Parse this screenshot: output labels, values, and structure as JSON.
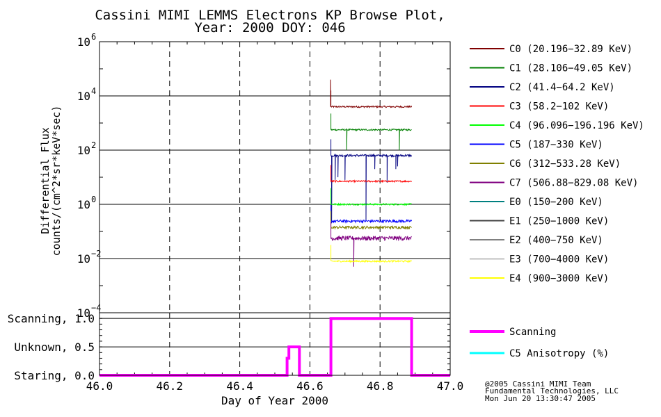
{
  "chart_data": {
    "type": "line",
    "title_line1": "Cassini MIMI LEMMS Electrons KP Browse Plot,",
    "title_line2": "Year: 2000 DOY: 046",
    "xlabel": "Day of Year 2000",
    "xlim": [
      46.0,
      47.0
    ],
    "x_ticks": [
      "46.0",
      "46.2",
      "46.4",
      "46.6",
      "46.8",
      "47.0"
    ],
    "flux_panel": {
      "ylabel_line1": "Differential Flux",
      "ylabel_line2": "counts/(cm^2*sr*keV*sec)",
      "ylim_log10": [
        -4,
        6
      ],
      "y_ticks": [
        {
          "base": "10",
          "exp": "6",
          "log": 6
        },
        {
          "base": "10",
          "exp": "4",
          "log": 4
        },
        {
          "base": "10",
          "exp": "2",
          "log": 2
        },
        {
          "base": "10",
          "exp": "0",
          "log": 0
        },
        {
          "base": "10",
          "exp": "−2",
          "log": -2
        },
        {
          "base": "10",
          "exp": "−4",
          "log": -4
        }
      ],
      "series": [
        {
          "name": "C0 (20.196−32.89 KeV)",
          "color": "#800000",
          "x_range": [
            46.66,
            46.89
          ],
          "level_log10": 3.6,
          "noise": 0.03,
          "spikes": [
            {
              "x": 46.659,
              "log10": 4.6
            }
          ],
          "dips": []
        },
        {
          "name": "C1 (28.106−49.05 KeV)",
          "color": "#007f00",
          "x_range": [
            46.66,
            46.89
          ],
          "level_log10": 2.75,
          "noise": 0.03,
          "spikes": [],
          "dips": [
            {
              "x": 46.705,
              "log10": 2.0
            },
            {
              "x": 46.855,
              "log10": 2.0
            }
          ]
        },
        {
          "name": "C2 (41.4−64.2 KeV)",
          "color": "#000080",
          "x_range": [
            46.66,
            46.89
          ],
          "level_log10": 1.8,
          "noise": 0.04,
          "spikes": [],
          "dips": [
            {
              "x": 46.662,
              "log10": -0.7
            },
            {
              "x": 46.672,
              "log10": 0.9
            },
            {
              "x": 46.68,
              "log10": 1.0
            },
            {
              "x": 46.7,
              "log10": 0.9
            },
            {
              "x": 46.76,
              "log10": -0.6
            },
            {
              "x": 46.785,
              "log10": 1.3
            },
            {
              "x": 46.82,
              "log10": 0.8
            },
            {
              "x": 46.845,
              "log10": 1.3
            },
            {
              "x": 46.85,
              "log10": 1.4
            }
          ]
        },
        {
          "name": "C3 (58.2−102 KeV)",
          "color": "#ff0000",
          "x_range": [
            46.66,
            46.89
          ],
          "level_log10": 0.85,
          "noise": 0.03,
          "spikes": [],
          "dips": []
        },
        {
          "name": "C4 (96.096−196.196 KeV)",
          "color": "#00ff00",
          "x_range": [
            46.66,
            46.89
          ],
          "level_log10": 0.0,
          "noise": 0.03,
          "spikes": [],
          "dips": []
        },
        {
          "name": "C5 (187−330 KeV)",
          "color": "#0000ff",
          "x_range": [
            46.66,
            46.89
          ],
          "level_log10": -0.62,
          "noise": 0.05,
          "spikes": [],
          "dips": []
        },
        {
          "name": "C6 (312−533.28 KeV)",
          "color": "#808000",
          "x_range": [
            46.66,
            46.89
          ],
          "level_log10": -0.85,
          "noise": 0.05,
          "spikes": [],
          "dips": []
        },
        {
          "name": "C7 (506.88−829.08 KeV)",
          "color": "#800080",
          "x_range": [
            46.66,
            46.89
          ],
          "level_log10": -1.25,
          "noise": 0.08,
          "spikes": [],
          "dips": [
            {
              "x": 46.725,
              "log10": -2.3
            }
          ]
        },
        {
          "name": "E0 (150−200 KeV)",
          "color": "#008080",
          "x_range": null,
          "level_log10": null,
          "noise": 0,
          "spikes": [],
          "dips": []
        },
        {
          "name": "E1 (250−1000 KeV)",
          "color": "#404040",
          "x_range": null,
          "level_log10": null,
          "noise": 0,
          "spikes": [],
          "dips": []
        },
        {
          "name": "E2 (400−750 KeV)",
          "color": "#808080",
          "x_range": null,
          "level_log10": null,
          "noise": 0,
          "spikes": [],
          "dips": []
        },
        {
          "name": "E3 (700−4000 KeV)",
          "color": "#c0c0c0",
          "x_range": null,
          "level_log10": null,
          "noise": 0,
          "spikes": [],
          "dips": []
        },
        {
          "name": "E4 (900−3000 KeV)",
          "color": "#ffff00",
          "x_range": [
            46.66,
            46.89
          ],
          "level_log10": -2.1,
          "noise": 0.03,
          "spikes": [],
          "dips": []
        }
      ]
    },
    "mode_panel": {
      "ylim": [
        0,
        1.1
      ],
      "y_ticks": [
        {
          "label": "Scanning, 1.0",
          "value": 1.0
        },
        {
          "label": "Unknown, 0.5",
          "value": 0.5
        },
        {
          "label": "Staring, 0.0",
          "value": 0.0
        }
      ],
      "series": [
        {
          "name": "Scanning",
          "color": "#ff00ff",
          "x": [
            46.0,
            46.535,
            46.535,
            46.54,
            46.54,
            46.57,
            46.57,
            46.66,
            46.66,
            46.89,
            46.89,
            47.0
          ],
          "y": [
            0,
            0,
            0.3,
            0.3,
            0.5,
            0.5,
            0,
            0,
            1.0,
            1.0,
            0,
            0
          ]
        },
        {
          "name": "C5 Anisotropy (%)",
          "color": "#00ffff",
          "x": [],
          "y": []
        }
      ]
    },
    "footer": [
      "@2005 Cassini MIMI Team",
      "Fundamental Technologies, LLC",
      "Mon Jun 20 13:30:47 2005"
    ]
  }
}
